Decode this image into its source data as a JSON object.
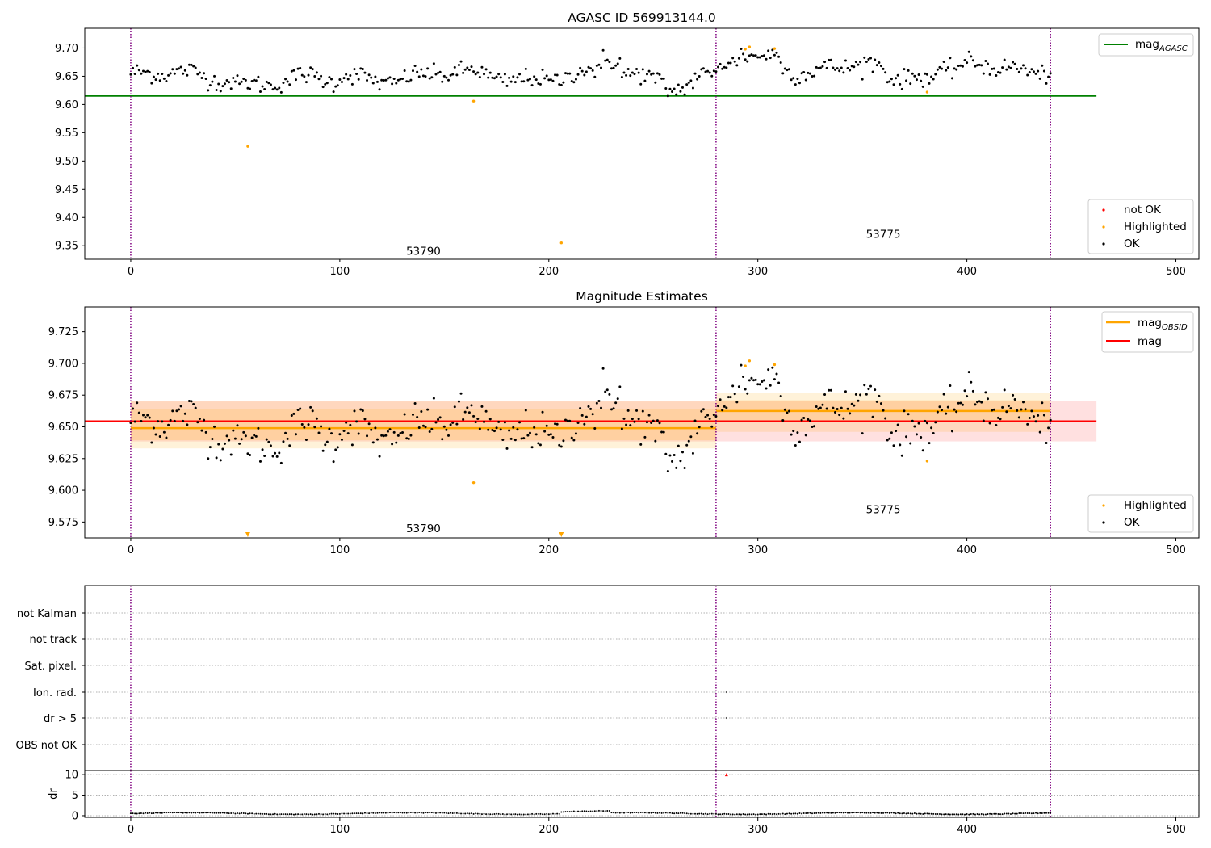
{
  "colors": {
    "ok": "#000000",
    "highlighted": "#ffa500",
    "not_ok": "#ff0000",
    "agasc_line": "#008000",
    "obsid_line": "#ffa500",
    "mag_line": "#ff0000",
    "obs_boundary": "#800080",
    "grid": "#b0b0b0"
  },
  "chart_data": [
    {
      "id": "agasc",
      "type": "scatter",
      "title": "AGASC ID 569913144.0",
      "xlim": [
        -22,
        511
      ],
      "ylim": [
        9.326,
        9.735
      ],
      "xticks": [
        0,
        100,
        200,
        300,
        400,
        500
      ],
      "yticks": [
        9.35,
        9.4,
        9.45,
        9.5,
        9.55,
        9.6,
        9.65,
        9.7
      ],
      "ytick_labels": [
        "9.35",
        "9.40",
        "9.45",
        "9.50",
        "9.55",
        "9.60",
        "9.65",
        "9.70"
      ],
      "obs_boundaries": [
        0,
        280,
        440
      ],
      "hline": {
        "y": 9.615,
        "x": [
          -22,
          462
        ],
        "label_main": "mag",
        "label_sub": "AGASC"
      },
      "highlighted": [
        [
          56,
          9.526
        ],
        [
          164,
          9.606
        ],
        [
          206,
          9.355
        ],
        [
          294,
          9.698
        ],
        [
          296,
          9.702
        ],
        [
          308,
          9.699
        ],
        [
          381,
          9.622
        ]
      ],
      "annotations": [
        {
          "text": "53790",
          "x": 140,
          "y": 9.334
        },
        {
          "text": "53775",
          "x": 360,
          "y": 9.364
        }
      ],
      "legend_top": "top-right",
      "legend_bottom": {
        "position": "bottom-right",
        "entries": [
          "not OK",
          "Highlighted",
          "OK"
        ]
      }
    },
    {
      "id": "mag_estimates",
      "type": "scatter",
      "title": "Magnitude Estimates",
      "xlim": [
        -22,
        511
      ],
      "ylim": [
        9.5625,
        9.7445
      ],
      "xticks": [
        0,
        100,
        200,
        300,
        400,
        500
      ],
      "yticks": [
        9.575,
        9.6,
        9.625,
        9.65,
        9.675,
        9.7,
        9.725
      ],
      "ytick_labels": [
        "9.575",
        "9.600",
        "9.625",
        "9.650",
        "9.675",
        "9.700",
        "9.725"
      ],
      "obs_boundaries": [
        0,
        280,
        440
      ],
      "mag": {
        "value": 9.6545,
        "band": [
          9.6385,
          9.6705
        ],
        "x": [
          -22,
          462
        ]
      },
      "obsid_segments": [
        {
          "x": [
            0,
            280
          ],
          "value": 9.649,
          "band_outer": [
            9.633,
            9.67
          ],
          "band_inner": [
            9.6395,
            9.664
          ]
        },
        {
          "x": [
            280,
            440
          ],
          "value": 9.6625,
          "band_outer": [
            9.646,
            9.677
          ],
          "band_inner": [
            9.654,
            9.671
          ]
        }
      ],
      "highlighted": [
        [
          164,
          9.606
        ],
        [
          294,
          9.698
        ],
        [
          296,
          9.702
        ],
        [
          308,
          9.699
        ],
        [
          381,
          9.623
        ]
      ],
      "highlighted_offscale": [
        56,
        206
      ],
      "annotations": [
        {
          "text": "53790",
          "x": 140,
          "y": 9.567
        },
        {
          "text": "53775",
          "x": 360,
          "y": 9.582
        }
      ],
      "legend_top": {
        "position": "top-right",
        "entries": [
          {
            "main": "mag",
            "sub": "OBSID"
          },
          {
            "main": "mag",
            "sub": ""
          }
        ]
      },
      "legend_bottom": {
        "position": "bottom-right",
        "entries": [
          "Highlighted",
          "OK"
        ]
      }
    },
    {
      "id": "flags",
      "type": "scatter",
      "xlim": [
        -22,
        511
      ],
      "categories": [
        "not Kalman",
        "not track",
        "Sat. pixel.",
        "Ion. rad.",
        "dr > 5",
        "OBS not OK"
      ],
      "obs_boundaries": [
        0,
        280,
        440
      ],
      "points": [
        {
          "x": 285,
          "category": "Ion. rad."
        },
        {
          "x": 285,
          "category": "dr > 5"
        }
      ]
    },
    {
      "id": "dr",
      "type": "scatter",
      "ylabel": "dr",
      "xlim": [
        -22,
        511
      ],
      "ylim": [
        -0.4,
        11
      ],
      "xticks": [
        0,
        100,
        200,
        300,
        400,
        500
      ],
      "yticks": [
        0,
        5,
        10
      ],
      "ytick_labels": [
        "0",
        "5",
        "10"
      ],
      "obs_boundaries": [
        0,
        280,
        440
      ],
      "not_ok": [
        [
          285,
          10
        ]
      ]
    }
  ]
}
